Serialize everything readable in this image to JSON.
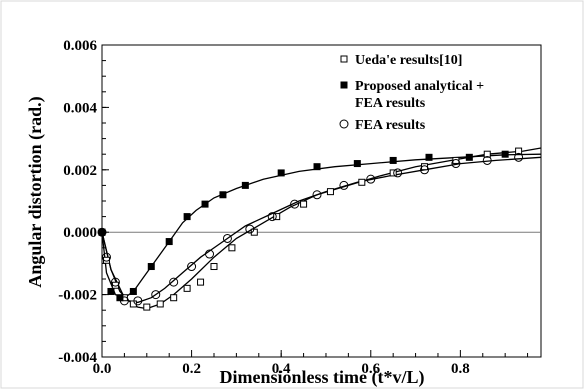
{
  "chart_data": {
    "type": "line",
    "xlabel": "Dimensionless time (t*v/L)",
    "ylabel": "Angular distortion (rad.)",
    "xlim": [
      0.0,
      0.98
    ],
    "ylim": [
      -0.004,
      0.006
    ],
    "x_ticks": [
      "0.0",
      "0.2",
      "0.4",
      "0.6",
      "0.8"
    ],
    "x_tick_values": [
      0.0,
      0.2,
      0.4,
      0.6,
      0.8
    ],
    "y_ticks": [
      "0.006",
      "0.004",
      "0.002",
      "0.000",
      "-0.002",
      "-0.004"
    ],
    "y_tick_values": [
      0.006,
      0.004,
      0.002,
      0.0,
      -0.002,
      -0.004
    ],
    "grid": false,
    "zero_line": true,
    "legend_position": "top-right",
    "legend": [
      {
        "marker": "open-square",
        "text": "Ueda'e results[10]"
      },
      {
        "marker": "filled-square",
        "text": "Proposed analytical +"
      },
      {
        "marker": "none",
        "text": "FEA results"
      },
      {
        "marker": "open-circle",
        "text": "FEA results"
      }
    ],
    "series": [
      {
        "marker": "open-square",
        "color": "#000000",
        "x": [
          0.0,
          0.01,
          0.03,
          0.05,
          0.07,
          0.1,
          0.13,
          0.16,
          0.19,
          0.22,
          0.25,
          0.29,
          0.34,
          0.39,
          0.45,
          0.51,
          0.58,
          0.65,
          0.72,
          0.79,
          0.86,
          0.93
        ],
        "y": [
          0.0,
          -0.0009,
          -0.0017,
          -0.0021,
          -0.0023,
          -0.0024,
          -0.0023,
          -0.0021,
          -0.0018,
          -0.0016,
          -0.0011,
          -0.0005,
          0.0,
          0.0005,
          0.0009,
          0.0013,
          0.0016,
          0.0019,
          0.0021,
          0.0023,
          0.0025,
          0.0026
        ]
      },
      {
        "marker": "filled-square",
        "color": "#000000",
        "x": [
          0.0,
          0.02,
          0.04,
          0.07,
          0.11,
          0.15,
          0.19,
          0.23,
          0.27,
          0.32,
          0.4,
          0.48,
          0.57,
          0.65,
          0.73,
          0.82,
          0.9
        ],
        "y": [
          0.0,
          -0.0019,
          -0.0021,
          -0.0019,
          -0.0011,
          -0.0003,
          0.0005,
          0.0009,
          0.0012,
          0.0015,
          0.0019,
          0.0021,
          0.0022,
          0.0023,
          0.0024,
          0.0024,
          0.0025
        ]
      },
      {
        "marker": "open-circle",
        "color": "#000000",
        "x": [
          0.0,
          0.01,
          0.03,
          0.05,
          0.08,
          0.12,
          0.16,
          0.2,
          0.24,
          0.28,
          0.33,
          0.38,
          0.43,
          0.48,
          0.54,
          0.6,
          0.66,
          0.72,
          0.79,
          0.86,
          0.93
        ],
        "y": [
          0.0,
          -0.0008,
          -0.0016,
          -0.0022,
          -0.0022,
          -0.002,
          -0.0016,
          -0.0011,
          -0.0007,
          -0.0002,
          0.0001,
          0.0005,
          0.0009,
          0.0012,
          0.0015,
          0.0017,
          0.0019,
          0.002,
          0.0022,
          0.0023,
          0.0024
        ]
      }
    ],
    "curves": [
      {
        "x": [
          0.0,
          0.02,
          0.05,
          0.08,
          0.1,
          0.13,
          0.16,
          0.2,
          0.25,
          0.3,
          0.36,
          0.42,
          0.48,
          0.55,
          0.62,
          0.7,
          0.78,
          0.86,
          0.94,
          0.98
        ],
        "y": [
          0.0,
          -0.0012,
          -0.0021,
          -0.0024,
          -0.00245,
          -0.0023,
          -0.002,
          -0.0015,
          -0.0008,
          -0.0002,
          0.0003,
          0.0008,
          0.0012,
          0.0015,
          0.0018,
          0.0021,
          0.0023,
          0.0025,
          0.0026,
          0.0027
        ]
      },
      {
        "x": [
          0.0,
          0.01,
          0.03,
          0.05,
          0.07,
          0.09,
          0.12,
          0.15,
          0.18,
          0.21,
          0.25,
          0.3,
          0.36,
          0.44,
          0.52,
          0.6,
          0.7,
          0.8,
          0.9,
          0.98
        ],
        "y": [
          0.0,
          -0.0013,
          -0.002,
          -0.0021,
          -0.0019,
          -0.0015,
          -0.0009,
          -0.0003,
          0.0003,
          0.0007,
          0.0011,
          0.0014,
          0.0017,
          0.00195,
          0.0021,
          0.0022,
          0.00232,
          0.0024,
          0.00248,
          0.0025
        ]
      },
      {
        "x": [
          0.0,
          0.02,
          0.04,
          0.06,
          0.08,
          0.11,
          0.14,
          0.18,
          0.22,
          0.27,
          0.32,
          0.38,
          0.44,
          0.5,
          0.57,
          0.64,
          0.72,
          0.8,
          0.88,
          0.98
        ],
        "y": [
          0.0,
          -0.0012,
          -0.0019,
          -0.0022,
          -0.00225,
          -0.0021,
          -0.0018,
          -0.0013,
          -0.0008,
          -0.0003,
          0.0002,
          0.0006,
          0.001,
          0.0013,
          0.0016,
          0.0018,
          0.002,
          0.0022,
          0.0023,
          0.0024
        ]
      }
    ]
  }
}
